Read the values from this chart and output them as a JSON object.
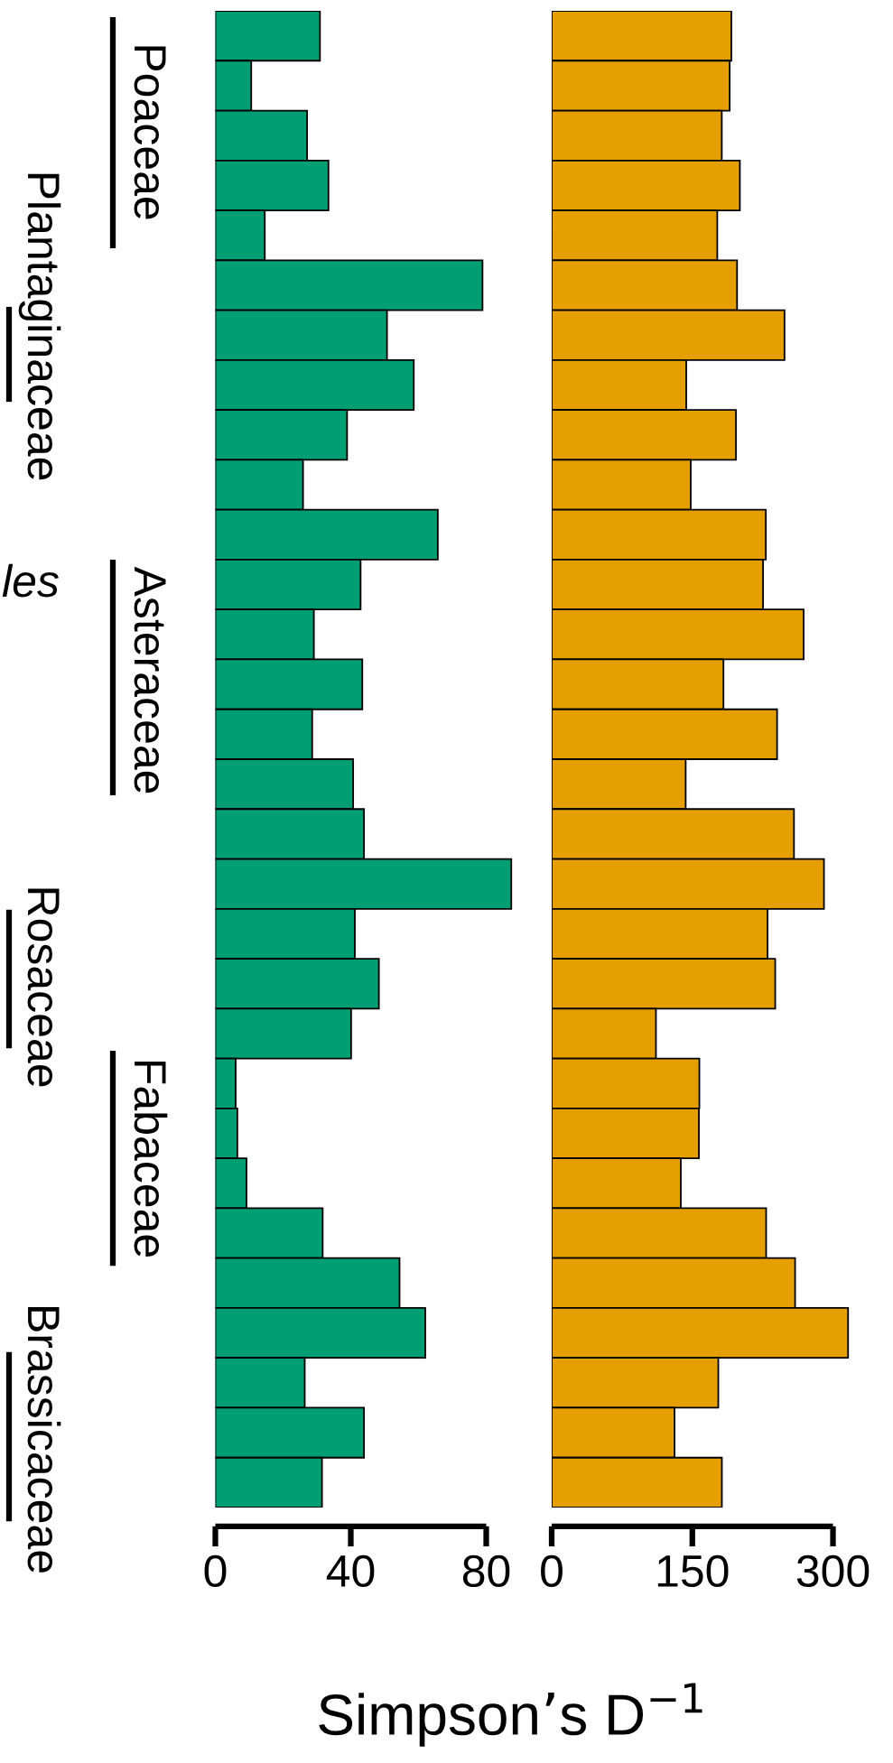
{
  "chart_data": [
    {
      "type": "bar",
      "orientation": "horizontal",
      "tick_labels": "x",
      "grid": false,
      "legend": false,
      "categories": [
        null,
        null,
        null,
        null,
        null,
        null,
        null,
        null,
        null,
        null,
        null,
        null,
        null,
        null,
        null,
        null,
        null,
        null,
        null,
        null,
        null,
        null,
        null,
        null,
        null,
        null,
        null,
        null,
        null,
        null
      ],
      "values": [
        30.9,
        10.6,
        27.1,
        33.4,
        14.6,
        78.9,
        50.7,
        58.6,
        38.9,
        25.9,
        65.7,
        42.9,
        29.1,
        43.4,
        28.6,
        40.7,
        43.9,
        87.4,
        41.2,
        48.3,
        40.1,
        6.0,
        6.5,
        9.2,
        31.7,
        54.4,
        62.0,
        26.4,
        43.9,
        31.5
      ],
      "color": "#009e73",
      "xlim": [
        0,
        90
      ],
      "xticks": [
        0,
        40,
        80
      ],
      "xlabel": "Simpson’s D$^{−1}$",
      "annotations": [
        "Poaceae",
        "Plantaginaceae",
        "Asteraceae",
        "Rosaceae",
        "Fabaceae",
        "Brassicaceae",
        "les"
      ]
    },
    {
      "type": "bar",
      "orientation": "horizontal",
      "tick_labels": "x",
      "grid": false,
      "legend": false,
      "categories": [
        null,
        null,
        null,
        null,
        null,
        null,
        null,
        null,
        null,
        null,
        null,
        null,
        null,
        null,
        null,
        null,
        null,
        null,
        null,
        null,
        null,
        null,
        null,
        null,
        null,
        null,
        null,
        null,
        null,
        null
      ],
      "values": [
        191.6,
        189.8,
        181.4,
        200.7,
        176.6,
        197.7,
        248.3,
        143.5,
        196.5,
        148.3,
        228.4,
        225.4,
        268.7,
        183.2,
        240.4,
        142.9,
        258.4,
        290.4,
        230.2,
        238.4,
        111.2,
        157.5,
        157.0,
        137.7,
        228.7,
        259.6,
        316.1,
        177.7,
        131.0,
        181.5
      ],
      "color": "#e69f00",
      "xlim": [
        0,
        320
      ],
      "xticks": [
        0,
        150,
        300
      ]
    }
  ]
}
